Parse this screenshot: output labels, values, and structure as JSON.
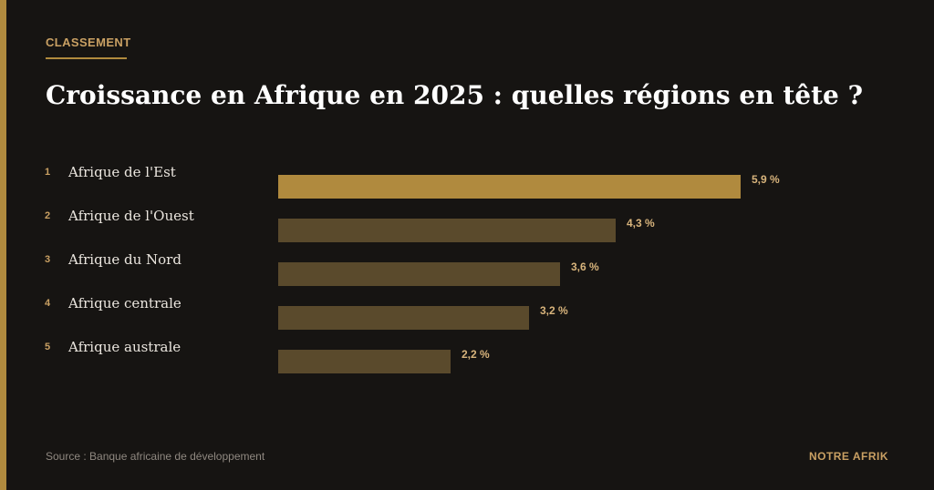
{
  "header": {
    "eyebrow": "CLASSEMENT",
    "title": "Croissance en Afrique en 2025 : quelles régions en tête ?"
  },
  "chart_data": {
    "type": "bar",
    "orientation": "horizontal",
    "title": "Croissance en Afrique en 2025 : quelles régions en tête ?",
    "ranks": [
      "1",
      "2",
      "3",
      "4",
      "5"
    ],
    "categories": [
      "Afrique de l'Est",
      "Afrique de l'Ouest",
      "Afrique du Nord",
      "Afrique centrale",
      "Afrique australe"
    ],
    "values": [
      5.9,
      4.3,
      3.6,
      3.2,
      2.2
    ],
    "value_labels": [
      "5,9 %",
      "4,3 %",
      "3,6 %",
      "3,2 %",
      "2,2 %"
    ],
    "unit": "%",
    "xlim": [
      0,
      5.9
    ],
    "grid": false,
    "colors": {
      "highlight": "#b08a3e",
      "default": "#5a4a2c",
      "value_text": "#d8b47c",
      "background": "#161412"
    }
  },
  "footer": {
    "source": "Source : Banque africaine de développement",
    "brand": "NOTRE AFRIK"
  }
}
